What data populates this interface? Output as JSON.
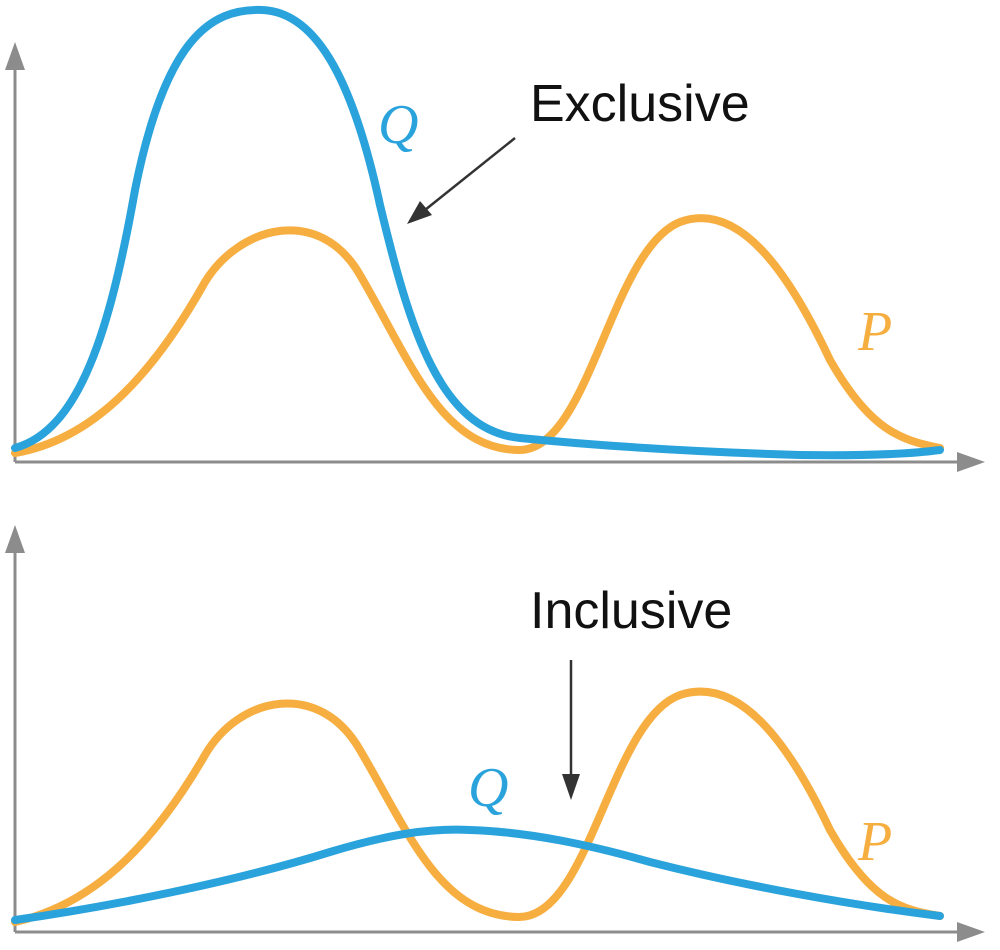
{
  "colors": {
    "p": "#f7ae41",
    "q": "#2aa3dc",
    "axis": "#8c8c8c",
    "pointer": "#333333"
  },
  "panels": [
    {
      "id": "exclusive",
      "annotation": "Exclusive",
      "p_label": "P",
      "q_label": "Q",
      "q_shape": "narrow mode covering the left peak of P"
    },
    {
      "id": "inclusive",
      "annotation": "Inclusive",
      "p_label": "P",
      "q_label": "Q",
      "q_shape": "broad low mode spanning both peaks of P"
    }
  ]
}
